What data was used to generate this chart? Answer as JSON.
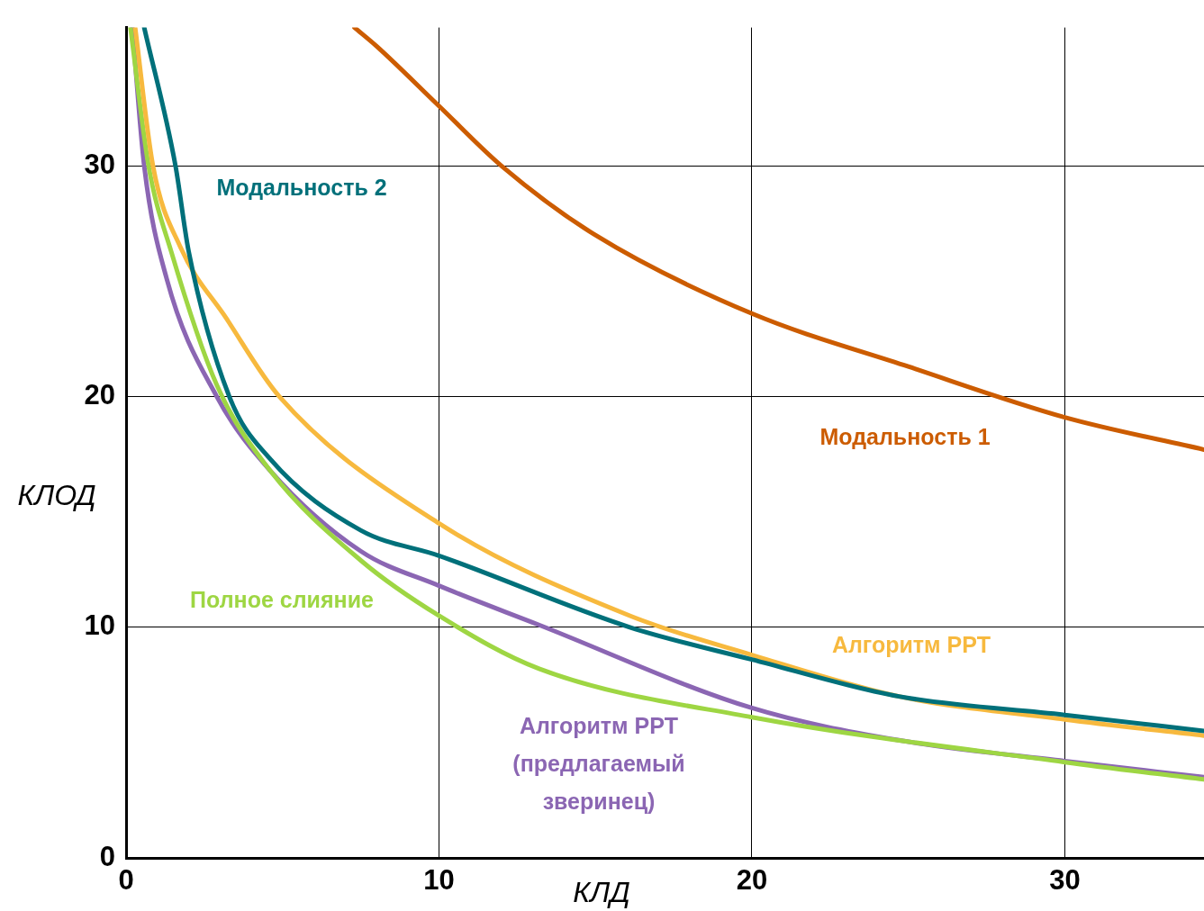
{
  "chart_data": {
    "type": "line",
    "xlabel": "КЛД",
    "ylabel": "КЛОД",
    "xlim": [
      0,
      34.45
    ],
    "ylim": [
      0,
      36
    ],
    "xticks": [
      0,
      10,
      20,
      30
    ],
    "yticks": [
      0,
      10,
      20,
      30
    ],
    "grid": true,
    "legend": false,
    "marker": "none",
    "line_style": "solid",
    "series": [
      {
        "name": "Модальность 1",
        "color": "#cc5c00",
        "x": [
          7.3,
          8,
          10,
          12,
          15,
          20,
          25,
          30,
          34.45
        ],
        "values": [
          36,
          35.2,
          32.6,
          30,
          27,
          23.6,
          21.3,
          19.1,
          17.7
        ]
      },
      {
        "name": "Модальность 2",
        "color": "#00707a",
        "x": [
          0.58,
          1.58,
          2,
          3.3,
          4.6,
          7.5,
          10,
          16.1,
          20,
          24.7,
          30,
          34.45
        ],
        "values": [
          36,
          30,
          26.3,
          20,
          17.3,
          14.2,
          13.1,
          10,
          8.6,
          7,
          6.2,
          5.5
        ]
      },
      {
        "name": "Алгоритм PPT",
        "color": "#f7b93e",
        "x": [
          0.29,
          0.86,
          1.73,
          3.2,
          4.9,
          10,
          16.1,
          20,
          24.7,
          30,
          34.45
        ],
        "values": [
          36,
          30,
          26.5,
          23.4,
          20,
          14.5,
          10.5,
          8.8,
          7,
          6,
          5.3
        ]
      },
      {
        "name": "Полное слияние",
        "color": "#9ed643",
        "x": [
          0.14,
          0.72,
          1.44,
          2.9,
          4.6,
          7.5,
          10,
          13.2,
          20,
          30,
          34.45
        ],
        "values": [
          36,
          30,
          26.3,
          20.5,
          16.8,
          12.9,
          10.5,
          8.2,
          6.1,
          4.15,
          3.4
        ]
      },
      {
        "name": "Алгоритм PPT (предлагаемый зверинец)",
        "color": "#8b66b3",
        "x": [
          0.2,
          0.58,
          1.3,
          2.9,
          4.6,
          7.5,
          10,
          13.2,
          20,
          24.7,
          30,
          34.45
        ],
        "values": [
          36,
          30,
          25.1,
          20,
          16.8,
          13.3,
          11.8,
          10.1,
          6.5,
          5.1,
          4.2,
          3.5
        ]
      }
    ]
  }
}
